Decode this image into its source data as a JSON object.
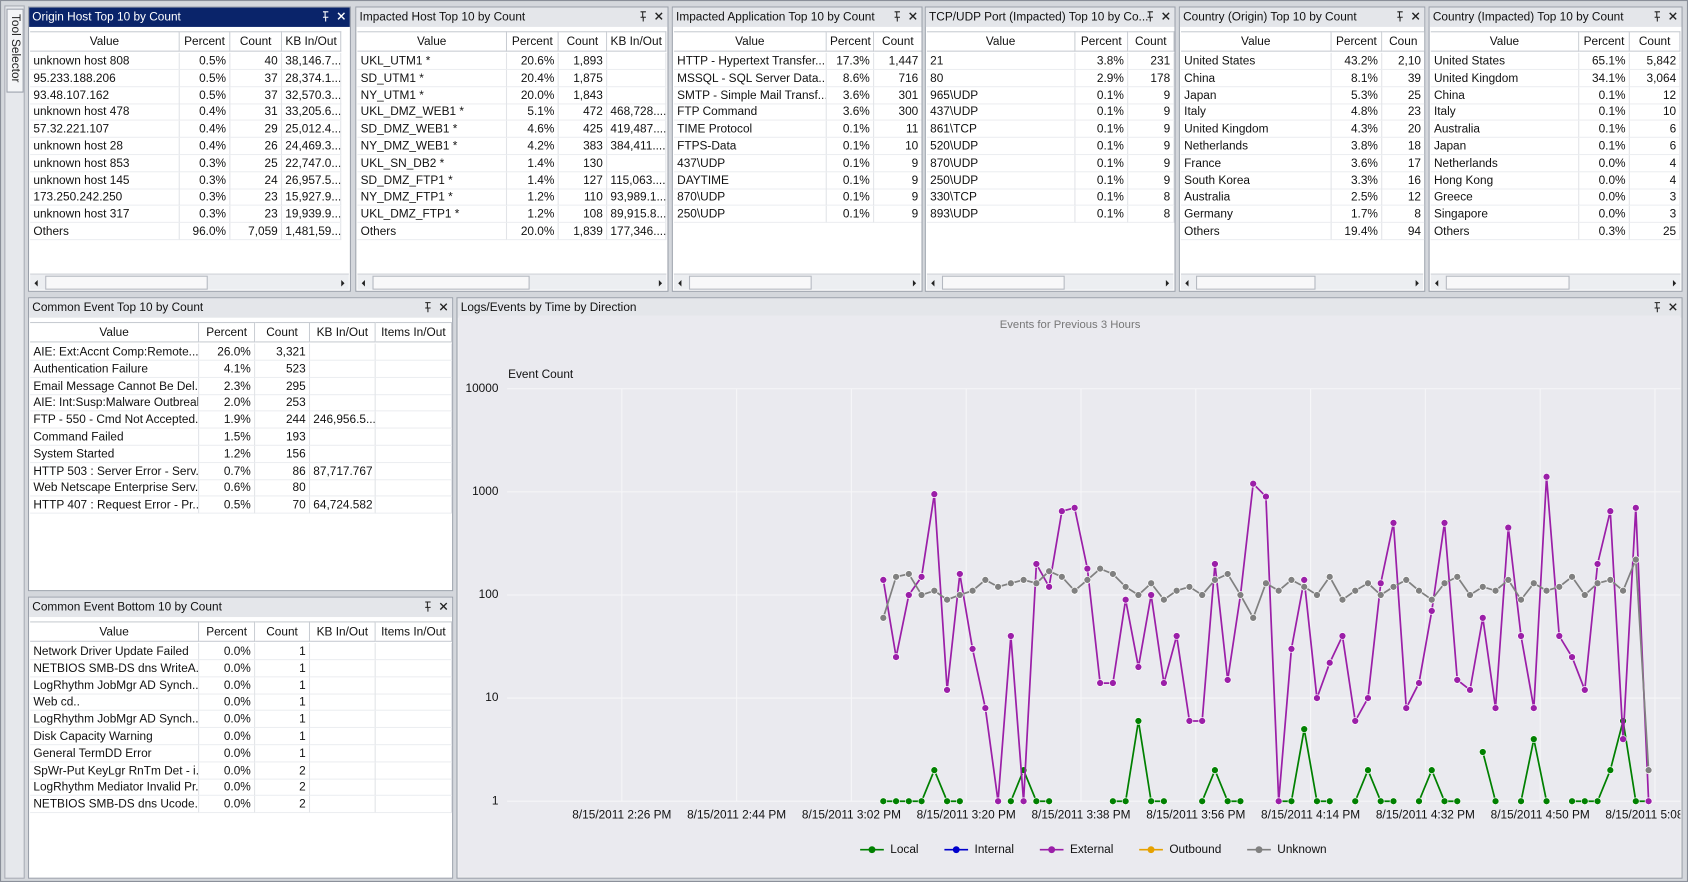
{
  "tool_selector": "Tool Selector",
  "chart_panel": {
    "title": "Logs/Events by Time by Direction"
  },
  "panels": [
    {
      "title": "Origin Host Top 10 by Count",
      "columns": [
        "Value",
        "Percent",
        "Count",
        "KB In/Out"
      ],
      "rows": [
        [
          "unknown host 808",
          "0.5%",
          "40",
          "38,146.7..."
        ],
        [
          "95.233.188.206",
          "0.5%",
          "37",
          "28,374.1..."
        ],
        [
          "93.48.107.162",
          "0.5%",
          "37",
          "32,570.3..."
        ],
        [
          "unknown host 478",
          "0.4%",
          "31",
          "33,205.6..."
        ],
        [
          "57.32.221.107",
          "0.4%",
          "29",
          "25,012.4..."
        ],
        [
          "unknown host 28",
          "0.4%",
          "26",
          "24,469.3..."
        ],
        [
          "unknown host 853",
          "0.3%",
          "25",
          "22,747.0..."
        ],
        [
          "unknown host 145",
          "0.3%",
          "24",
          "26,957.5..."
        ],
        [
          "173.250.242.250",
          "0.3%",
          "23",
          "15,927.9..."
        ],
        [
          "unknown host 317",
          "0.3%",
          "23",
          "19,939.9..."
        ],
        [
          "Others",
          "96.0%",
          "7,059",
          "1,481,59..."
        ]
      ]
    },
    {
      "title": "Impacted Host Top 10 by Count",
      "columns": [
        "Value",
        "Percent",
        "Count",
        "KB In/Out"
      ],
      "rows": [
        [
          "UKL_UTM1 *",
          "20.6%",
          "1,893",
          null
        ],
        [
          "SD_UTM1 *",
          "20.4%",
          "1,875",
          null
        ],
        [
          "NY_UTM1 *",
          "20.0%",
          "1,843",
          null
        ],
        [
          "UKL_DMZ_WEB1 *",
          "5.1%",
          "472",
          "468,728...."
        ],
        [
          "SD_DMZ_WEB1 *",
          "4.6%",
          "425",
          "419,487...."
        ],
        [
          "NY_DMZ_WEB1 *",
          "4.2%",
          "383",
          "384,411...."
        ],
        [
          "UKL_SN_DB2 *",
          "1.4%",
          "130",
          null
        ],
        [
          "SD_DMZ_FTP1 *",
          "1.4%",
          "127",
          "115,063...."
        ],
        [
          "NY_DMZ_FTP1 *",
          "1.2%",
          "110",
          "93,989.1..."
        ],
        [
          "UKL_DMZ_FTP1 *",
          "1.2%",
          "108",
          "89,915.8..."
        ],
        [
          "Others",
          "20.0%",
          "1,839",
          "177,346...."
        ]
      ]
    },
    {
      "title": "Impacted Application Top 10 by Count",
      "columns": [
        "Value",
        "Percent",
        "Count"
      ],
      "rows": [
        [
          "HTTP - Hypertext Transfer...",
          "17.3%",
          "1,447"
        ],
        [
          "MSSQL - SQL Server Data...",
          "8.6%",
          "716"
        ],
        [
          "SMTP - Simple Mail Transf...",
          "3.6%",
          "301"
        ],
        [
          "FTP Command",
          "3.6%",
          "300"
        ],
        [
          "TIME Protocol",
          "0.1%",
          "11"
        ],
        [
          "FTPS-Data",
          "0.1%",
          "10"
        ],
        [
          "437\\UDP",
          "0.1%",
          "9"
        ],
        [
          "DAYTIME",
          "0.1%",
          "9"
        ],
        [
          "870\\UDP",
          "0.1%",
          "9"
        ],
        [
          "250\\UDP",
          "0.1%",
          "9"
        ]
      ]
    },
    {
      "title": "TCP/UDP Port (Impacted) Top 10 by Co...",
      "columns": [
        "Value",
        "Percent",
        "Count"
      ],
      "rows": [
        [
          "21",
          "3.8%",
          "231"
        ],
        [
          "80",
          "2.9%",
          "178"
        ],
        [
          "965\\UDP",
          "0.1%",
          "9"
        ],
        [
          "437\\UDP",
          "0.1%",
          "9"
        ],
        [
          "861\\TCP",
          "0.1%",
          "9"
        ],
        [
          "520\\UDP",
          "0.1%",
          "9"
        ],
        [
          "870\\UDP",
          "0.1%",
          "9"
        ],
        [
          "250\\UDP",
          "0.1%",
          "9"
        ],
        [
          "330\\TCP",
          "0.1%",
          "8"
        ],
        [
          "893\\UDP",
          "0.1%",
          "8"
        ]
      ]
    },
    {
      "title": "Country (Origin) Top 10 by Count",
      "columns": [
        "Value",
        "Percent",
        "Coun"
      ],
      "rows": [
        [
          "United States",
          "43.2%",
          "2,10"
        ],
        [
          "China",
          "8.1%",
          "39"
        ],
        [
          "Japan",
          "5.3%",
          "25"
        ],
        [
          "Italy",
          "4.8%",
          "23"
        ],
        [
          "United Kingdom",
          "4.3%",
          "20"
        ],
        [
          "Netherlands",
          "3.8%",
          "18"
        ],
        [
          "France",
          "3.6%",
          "17"
        ],
        [
          "South Korea",
          "3.3%",
          "16"
        ],
        [
          "Australia",
          "2.5%",
          "12"
        ],
        [
          "Germany",
          "1.7%",
          "8"
        ],
        [
          "Others",
          "19.4%",
          "94"
        ]
      ]
    },
    {
      "title": "Country (Impacted) Top 10 by Count",
      "columns": [
        "Value",
        "Percent",
        "Count"
      ],
      "rows": [
        [
          "United States",
          "65.1%",
          "5,842"
        ],
        [
          "United Kingdom",
          "34.1%",
          "3,064"
        ],
        [
          "China",
          "0.1%",
          "12"
        ],
        [
          "Italy",
          "0.1%",
          "10"
        ],
        [
          "Australia",
          "0.1%",
          "6"
        ],
        [
          "Japan",
          "0.1%",
          "6"
        ],
        [
          "Netherlands",
          "0.0%",
          "4"
        ],
        [
          "Hong Kong",
          "0.0%",
          "4"
        ],
        [
          "Greece",
          "0.0%",
          "3"
        ],
        [
          "Singapore",
          "0.0%",
          "3"
        ],
        [
          "Others",
          "0.3%",
          "25"
        ]
      ]
    },
    {
      "title": "Common Event Top 10 by Count",
      "columns": [
        "Value",
        "Percent",
        "Count",
        "KB In/Out",
        "Items In/Out"
      ],
      "rows": [
        [
          "AIE: Ext:Accnt Comp:Remote...",
          "26.0%",
          "3,321",
          null,
          null
        ],
        [
          "Authentication Failure",
          "4.1%",
          "523",
          null,
          null
        ],
        [
          "Email Message Cannot Be Del...",
          "2.3%",
          "295",
          null,
          null
        ],
        [
          "AIE: Int:Susp:Malware Outbreak",
          "2.0%",
          "253",
          null,
          null
        ],
        [
          "FTP - 550 - Cmd Not Accepted...",
          "1.9%",
          "244",
          "246,956.5...",
          null
        ],
        [
          "Command Failed",
          "1.5%",
          "193",
          null,
          null
        ],
        [
          "System Started",
          "1.2%",
          "156",
          null,
          null
        ],
        [
          "HTTP 503 : Server Error - Serv...",
          "0.7%",
          "86",
          "87,717.767",
          null
        ],
        [
          "Web Netscape Enterprise Serv...",
          "0.6%",
          "80",
          null,
          null
        ],
        [
          "HTTP 407 : Request Error - Pr...",
          "0.5%",
          "70",
          "64,724.582",
          null
        ]
      ]
    },
    {
      "title": "Common Event Bottom 10 by Count",
      "columns": [
        "Value",
        "Percent",
        "Count",
        "KB In/Out",
        "Items In/Out"
      ],
      "rows": [
        [
          "Network Driver Update Failed",
          "0.0%",
          "1",
          null,
          null
        ],
        [
          "NETBIOS SMB-DS dns WriteA...",
          "0.0%",
          "1",
          null,
          null
        ],
        [
          "LogRhythm JobMgr AD Synch...",
          "0.0%",
          "1",
          null,
          null
        ],
        [
          "Web cd..",
          "0.0%",
          "1",
          null,
          null
        ],
        [
          "LogRhythm JobMgr AD Synch...",
          "0.0%",
          "1",
          null,
          null
        ],
        [
          "Disk Capacity Warning",
          "0.0%",
          "1",
          null,
          null
        ],
        [
          "General TermDD Error",
          "0.0%",
          "1",
          null,
          null
        ],
        [
          "SpWr-Put KeyLgr RnTm Det - i...",
          "0.0%",
          "2",
          null,
          null
        ],
        [
          "LogRhythm Mediator Invalid Pr...",
          "0.0%",
          "2",
          null,
          null
        ],
        [
          "NETBIOS SMB-DS dns Ucode...",
          "0.0%",
          "2",
          null,
          null
        ]
      ]
    }
  ],
  "chart_data": {
    "type": "line",
    "subtitle": "Events for Previous 3 Hours",
    "y_label": "Event Count",
    "log_scale": true,
    "grid": true,
    "ylim": [
      1,
      10000
    ],
    "yticks": [
      1,
      10,
      100,
      1000,
      10000
    ],
    "xlim": [
      "8/15/2011 2:08 PM",
      "8/15/2011 5:12 PM"
    ],
    "xticks": [
      "8/15/2011 2:26 PM",
      "8/15/2011 2:44 PM",
      "8/15/2011 3:02 PM",
      "8/15/2011 3:20 PM",
      "8/15/2011 3:38 PM",
      "8/15/2011 3:56 PM",
      "8/15/2011 4:14 PM",
      "8/15/2011 4:32 PM",
      "8/15/2011 4:50 PM",
      "8/15/2011 5:08 PM"
    ],
    "x": [
      "8/15/2011 3:07 PM",
      "8/15/2011 3:09 PM",
      "8/15/2011 3:11 PM",
      "8/15/2011 3:13 PM",
      "8/15/2011 3:15 PM",
      "8/15/2011 3:17 PM",
      "8/15/2011 3:19 PM",
      "8/15/2011 3:21 PM",
      "8/15/2011 3:23 PM",
      "8/15/2011 3:25 PM",
      "8/15/2011 3:27 PM",
      "8/15/2011 3:29 PM",
      "8/15/2011 3:31 PM",
      "8/15/2011 3:33 PM",
      "8/15/2011 3:35 PM",
      "8/15/2011 3:37 PM",
      "8/15/2011 3:39 PM",
      "8/15/2011 3:41 PM",
      "8/15/2011 3:43 PM",
      "8/15/2011 3:45 PM",
      "8/15/2011 3:47 PM",
      "8/15/2011 3:49 PM",
      "8/15/2011 3:51 PM",
      "8/15/2011 3:53 PM",
      "8/15/2011 3:55 PM",
      "8/15/2011 3:57 PM",
      "8/15/2011 3:59 PM",
      "8/15/2011 4:01 PM",
      "8/15/2011 4:03 PM",
      "8/15/2011 4:05 PM",
      "8/15/2011 4:07 PM",
      "8/15/2011 4:09 PM",
      "8/15/2011 4:11 PM",
      "8/15/2011 4:13 PM",
      "8/15/2011 4:15 PM",
      "8/15/2011 4:17 PM",
      "8/15/2011 4:19 PM",
      "8/15/2011 4:21 PM",
      "8/15/2011 4:23 PM",
      "8/15/2011 4:25 PM",
      "8/15/2011 4:27 PM",
      "8/15/2011 4:29 PM",
      "8/15/2011 4:31 PM",
      "8/15/2011 4:33 PM",
      "8/15/2011 4:35 PM",
      "8/15/2011 4:37 PM",
      "8/15/2011 4:39 PM",
      "8/15/2011 4:41 PM",
      "8/15/2011 4:43 PM",
      "8/15/2011 4:45 PM",
      "8/15/2011 4:47 PM",
      "8/15/2011 4:49 PM",
      "8/15/2011 4:51 PM",
      "8/15/2011 4:53 PM",
      "8/15/2011 4:55 PM",
      "8/15/2011 4:57 PM",
      "8/15/2011 4:59 PM",
      "8/15/2011 5:01 PM",
      "8/15/2011 5:03 PM",
      "8/15/2011 5:05 PM",
      "8/15/2011 5:07 PM"
    ],
    "series": [
      {
        "name": "Local",
        "color": "#008000",
        "values": [
          1,
          1,
          1,
          1,
          2,
          1,
          1,
          null,
          null,
          null,
          1,
          2,
          1,
          1,
          null,
          null,
          null,
          null,
          1,
          1,
          6,
          1,
          1,
          null,
          null,
          1,
          2,
          1,
          1,
          null,
          null,
          1,
          1,
          5,
          1,
          1,
          null,
          1,
          2,
          1,
          1,
          null,
          1,
          2,
          1,
          1,
          null,
          3,
          1,
          null,
          1,
          4,
          1,
          null,
          1,
          1,
          1,
          2,
          6,
          1,
          1
        ]
      },
      {
        "name": "Internal",
        "color": "#0000cc",
        "values": [
          null,
          null,
          null,
          null,
          null,
          null,
          null,
          null,
          null,
          null,
          null,
          null,
          null,
          null,
          null,
          null,
          null,
          null,
          null,
          null,
          null,
          null,
          null,
          null,
          null,
          null,
          null,
          null,
          null,
          null,
          null,
          null,
          null,
          null,
          null,
          null,
          null,
          null,
          null,
          null,
          null,
          null,
          null,
          null,
          null,
          null,
          null,
          null,
          null,
          null,
          null,
          null,
          null,
          null,
          null,
          null,
          null,
          null,
          null,
          null,
          null
        ]
      },
      {
        "name": "External",
        "color": "#9b1fa8",
        "values": [
          140,
          25,
          100,
          150,
          950,
          12,
          160,
          30,
          8,
          1,
          40,
          1,
          200,
          120,
          650,
          700,
          180,
          14,
          14,
          90,
          20,
          100,
          14,
          40,
          6,
          6,
          200,
          15,
          100,
          1200,
          900,
          1,
          30,
          140,
          10,
          22,
          40,
          6,
          10,
          130,
          500,
          8,
          14,
          70,
          500,
          15,
          12,
          60,
          8,
          450,
          40,
          8,
          1400,
          40,
          25,
          12,
          200,
          650,
          4,
          700,
          1
        ]
      },
      {
        "name": "Outbound",
        "color": "#e6a100",
        "values": [
          null,
          null,
          null,
          null,
          null,
          null,
          null,
          null,
          null,
          null,
          null,
          null,
          null,
          null,
          null,
          null,
          null,
          null,
          null,
          null,
          null,
          null,
          null,
          null,
          null,
          null,
          null,
          null,
          null,
          null,
          null,
          null,
          null,
          null,
          null,
          null,
          null,
          null,
          null,
          null,
          null,
          null,
          null,
          null,
          null,
          null,
          null,
          null,
          null,
          null,
          null,
          null,
          null,
          null,
          null,
          null,
          null,
          null,
          null,
          null,
          null
        ]
      },
      {
        "name": "Unknown",
        "color": "#808080",
        "values": [
          60,
          150,
          160,
          100,
          110,
          90,
          100,
          110,
          140,
          120,
          130,
          140,
          130,
          170,
          150,
          110,
          140,
          180,
          160,
          120,
          100,
          130,
          90,
          110,
          120,
          100,
          140,
          160,
          100,
          60,
          130,
          110,
          140,
          120,
          100,
          150,
          90,
          110,
          130,
          100,
          120,
          140,
          110,
          90,
          130,
          150,
          100,
          120,
          110,
          140,
          90,
          130,
          110,
          120,
          150,
          100,
          130,
          140,
          110,
          220,
          2
        ]
      }
    ]
  }
}
